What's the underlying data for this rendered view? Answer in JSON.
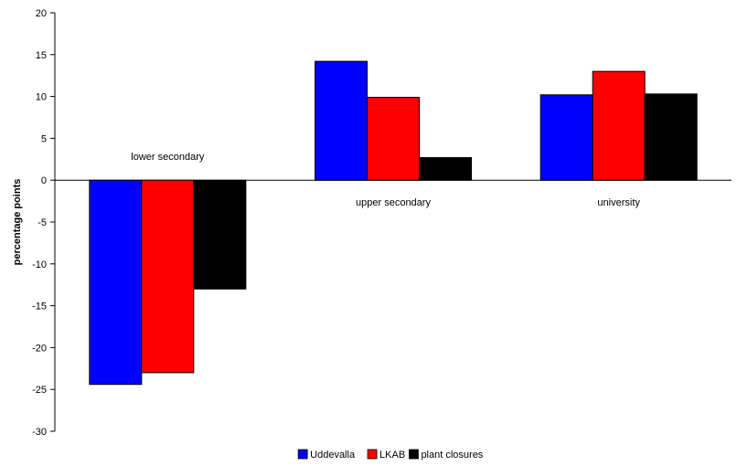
{
  "chart_data": {
    "type": "bar",
    "title": "",
    "xlabel": "",
    "ylabel": "percentage points",
    "ylim": [
      -30,
      20
    ],
    "yticks": [
      20,
      15,
      10,
      5,
      0,
      -5,
      -10,
      -15,
      -20,
      -25,
      -30
    ],
    "categories": [
      "lower secondary",
      "upper secondary",
      "university"
    ],
    "series": [
      {
        "name": "Uddevalla",
        "color": "#0000ff",
        "values": [
          -24.4,
          14.2,
          10.2
        ]
      },
      {
        "name": "LKAB",
        "color": "#ff0000",
        "values": [
          -23.0,
          9.9,
          13.0
        ]
      },
      {
        "name": "plant closures",
        "color": "#000000",
        "values": [
          -13.0,
          2.7,
          10.3
        ]
      }
    ],
    "grid": false,
    "legend_position": "bottom"
  }
}
